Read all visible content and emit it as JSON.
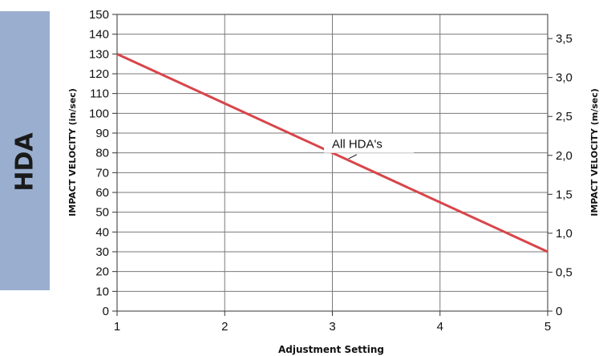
{
  "sidebar": {
    "label": "HDA"
  },
  "chart_data": {
    "type": "line",
    "xlabel": "Adjustment Setting",
    "ylabel": "IMPACT VELOCITY (in/sec)",
    "y2label": "IMPACT VELOCITY (m/sec)",
    "xlim": [
      1,
      5
    ],
    "ylim": [
      0,
      150
    ],
    "y2lim": [
      0,
      3.81
    ],
    "grid": true,
    "x_ticks": [
      1,
      2,
      3,
      4,
      5
    ],
    "y_ticks": [
      0,
      10,
      20,
      30,
      40,
      50,
      60,
      70,
      80,
      90,
      100,
      110,
      120,
      130,
      140,
      150
    ],
    "y2_ticks": [
      "0",
      "0,5",
      "1,0",
      "1,5",
      "2,0",
      "2,5",
      "3,0",
      "3,5"
    ],
    "y2_tick_values": [
      0,
      0.5,
      1.0,
      1.5,
      2.0,
      2.5,
      3.0,
      3.5
    ],
    "series": [
      {
        "name": "All HDA's",
        "x": [
          1,
          5
        ],
        "y": [
          130,
          30
        ],
        "color": "#d8454a"
      }
    ],
    "annotation": {
      "text": "All HDA's",
      "x": 3.15,
      "y": 80
    }
  }
}
